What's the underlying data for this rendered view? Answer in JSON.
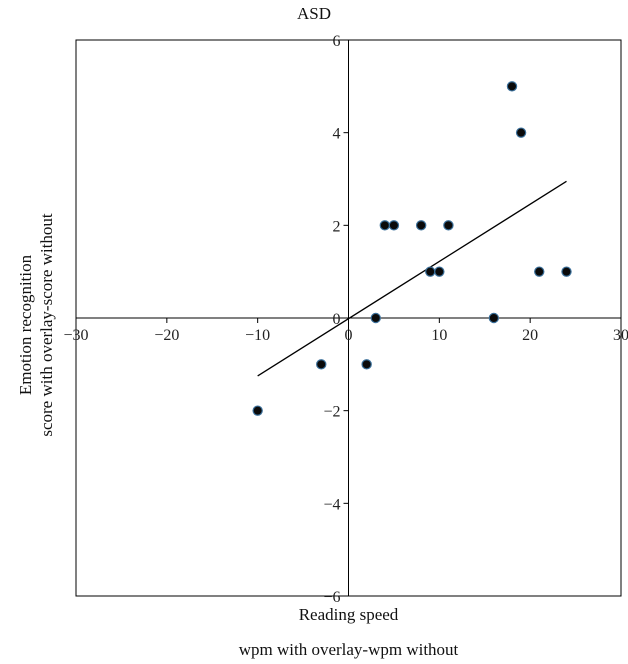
{
  "chart_data": {
    "type": "scatter",
    "title": "ASD",
    "xlabel": [
      "Reading speed",
      "wpm with overlay-wpm without"
    ],
    "ylabel": [
      "Emotion recognition",
      "score with overlay-score without"
    ],
    "xlim": [
      -30,
      30
    ],
    "ylim": [
      -6,
      6
    ],
    "xticks": [
      -30,
      -20,
      -10,
      0,
      10,
      20,
      30
    ],
    "yticks": [
      -6,
      -4,
      -2,
      0,
      2,
      4,
      6
    ],
    "xtick_labels": [
      "−30",
      "−20",
      "−10",
      "0",
      "10",
      "20",
      "30"
    ],
    "ytick_labels": [
      "−6",
      "−4",
      "−2",
      "0",
      "2",
      "4",
      "6"
    ],
    "grid": false,
    "legend": false,
    "points": [
      {
        "x": -10,
        "y": -2
      },
      {
        "x": -3,
        "y": -1
      },
      {
        "x": 2,
        "y": -1
      },
      {
        "x": 3,
        "y": 0
      },
      {
        "x": 4,
        "y": 2
      },
      {
        "x": 5,
        "y": 2
      },
      {
        "x": 8,
        "y": 2
      },
      {
        "x": 9,
        "y": 1
      },
      {
        "x": 10,
        "y": 1
      },
      {
        "x": 11,
        "y": 2
      },
      {
        "x": 16,
        "y": 0
      },
      {
        "x": 18,
        "y": 5
      },
      {
        "x": 19,
        "y": 4
      },
      {
        "x": 21,
        "y": 1
      },
      {
        "x": 24,
        "y": 1
      }
    ],
    "trendline": {
      "x": [
        -10,
        24
      ],
      "y": [
        -1.25,
        2.95
      ]
    },
    "colors": {
      "point_fill": "#0a0a0a",
      "point_edge": "#3a6f9a",
      "line": "#000000",
      "axes": "#000000"
    }
  }
}
